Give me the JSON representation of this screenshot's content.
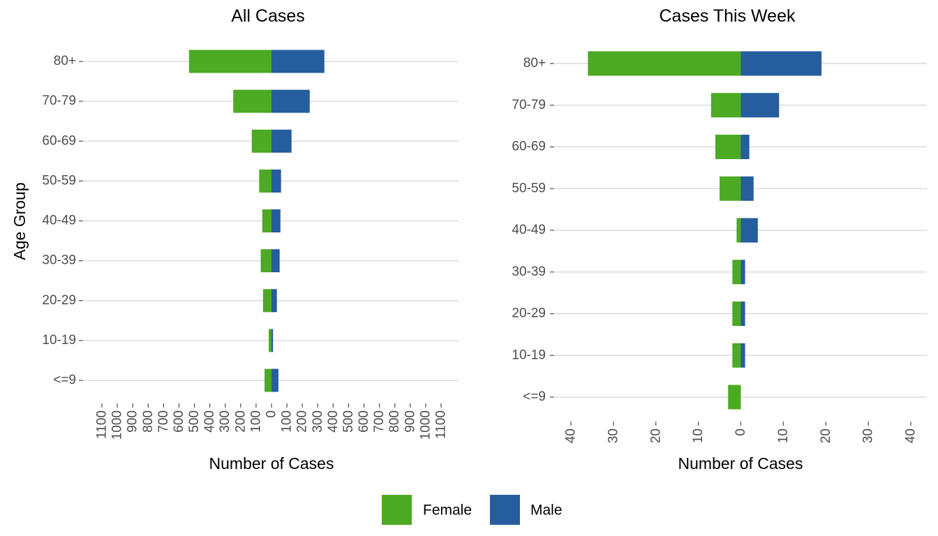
{
  "chart_data": [
    {
      "type": "bar",
      "orientation": "horizontal-diverging",
      "title": "All Cases",
      "xlabel": "Number of Cases",
      "ylabel": "Age Group",
      "categories": [
        "<=9",
        "10-19",
        "20-29",
        "30-39",
        "40-49",
        "50-59",
        "60-69",
        "70-79",
        "80+"
      ],
      "series": [
        {
          "name": "Female",
          "color": "#4daa23",
          "values": [
            -45,
            -18,
            -55,
            -70,
            -60,
            -80,
            -128,
            -248,
            -535
          ]
        },
        {
          "name": "Male",
          "color": "#265d9e",
          "values": [
            45,
            10,
            35,
            53,
            58,
            62,
            130,
            248,
            343
          ]
        }
      ],
      "xlim": [
        -1100,
        1100
      ],
      "x_ticks": [
        -1100,
        -1000,
        -900,
        -800,
        -700,
        -600,
        -500,
        -400,
        -300,
        -200,
        -100,
        0,
        100,
        200,
        300,
        400,
        500,
        600,
        700,
        800,
        900,
        1000,
        1100
      ],
      "x_tick_labels": [
        "1100",
        "1000",
        "900",
        "800",
        "700",
        "600",
        "500",
        "400",
        "300",
        "200",
        "100",
        "0",
        "100",
        "200",
        "300",
        "400",
        "500",
        "600",
        "700",
        "800",
        "900",
        "1000",
        "1100"
      ],
      "grid": "horizontal"
    },
    {
      "type": "bar",
      "orientation": "horizontal-diverging",
      "title": "Cases This Week",
      "xlabel": "Number of Cases",
      "ylabel": "",
      "categories": [
        "<=9",
        "10-19",
        "20-29",
        "30-39",
        "40-49",
        "50-59",
        "60-69",
        "70-79",
        "80+"
      ],
      "series": [
        {
          "name": "Female",
          "color": "#4daa23",
          "values": [
            -3,
            -2,
            -2,
            -2,
            -1,
            -5,
            -6,
            -7,
            -36
          ]
        },
        {
          "name": "Male",
          "color": "#265d9e",
          "values": [
            0,
            1,
            1,
            1,
            4,
            3,
            2,
            9,
            19
          ]
        }
      ],
      "xlim": [
        -40,
        40
      ],
      "x_ticks": [
        -40,
        -30,
        -20,
        -10,
        0,
        10,
        20,
        30,
        40
      ],
      "x_tick_labels": [
        "40",
        "30",
        "20",
        "10",
        "0",
        "10",
        "20",
        "30",
        "40"
      ],
      "grid": "horizontal"
    }
  ],
  "legend": {
    "position": "bottom",
    "items": [
      {
        "label": "Female",
        "color": "#4daa23"
      },
      {
        "label": "Male",
        "color": "#265d9e"
      }
    ]
  }
}
